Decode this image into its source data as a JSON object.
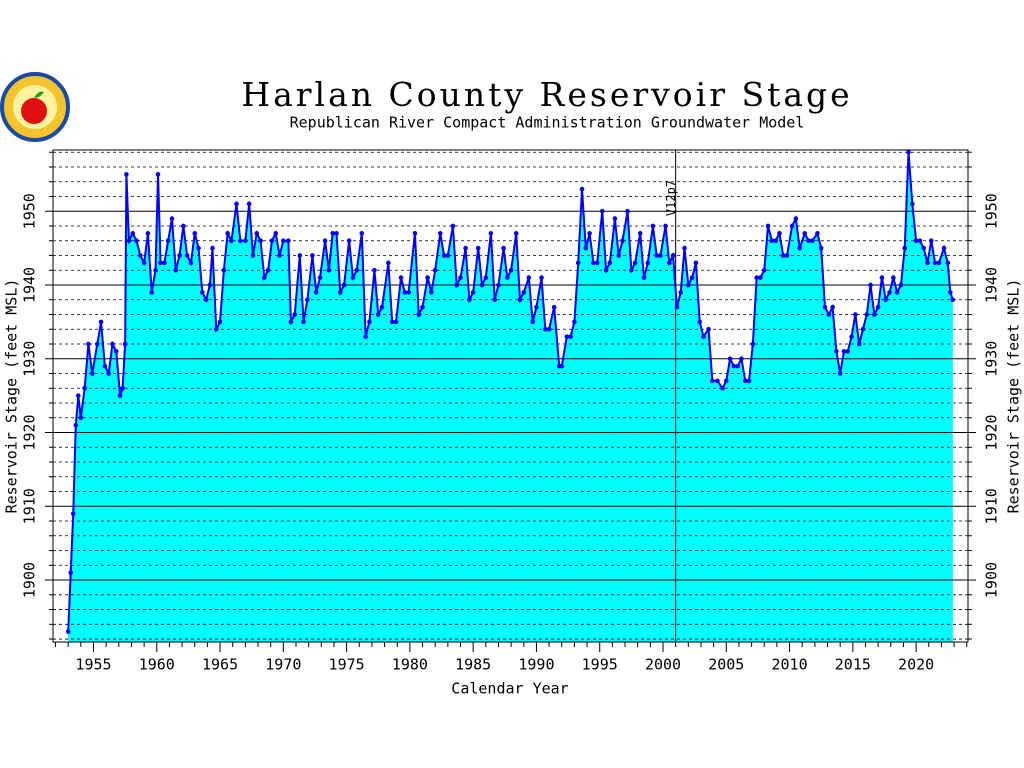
{
  "chart_data": {
    "type": "area",
    "title": "Harlan County Reservoir Stage",
    "subtitle": "Republican River Compact Administration Groundwater Model",
    "x_label": "Calendar Year",
    "y_label": "Reservoir Stage (feet MSL)",
    "xlim": [
      1951.8,
      2024.1
    ],
    "ylim": [
      1891.6,
      1958.3
    ],
    "xticks": [
      1955,
      1960,
      1965,
      1970,
      1975,
      1980,
      1985,
      1990,
      1995,
      2000,
      2005,
      2010,
      2015,
      2020
    ],
    "yticks": [
      1900,
      1910,
      1920,
      1930,
      1940,
      1950
    ],
    "x_minor_ticks": [
      1952,
      1953,
      1954,
      1956,
      1957,
      1958,
      1959,
      1961,
      1962,
      1963,
      1964,
      1966,
      1967,
      1968,
      1969,
      1971,
      1972,
      1973,
      1974,
      1976,
      1977,
      1978,
      1979,
      1981,
      1982,
      1983,
      1984,
      1986,
      1987,
      1988,
      1989,
      1991,
      1992,
      1993,
      1994,
      1996,
      1997,
      1998,
      1999,
      2001,
      2002,
      2003,
      2004,
      2006,
      2007,
      2008,
      2009,
      2011,
      2012,
      2013,
      2014,
      2016,
      2017,
      2018,
      2019,
      2021,
      2022,
      2023,
      2024
    ],
    "y_minor_grid": [
      1892,
      1894,
      1896,
      1898,
      1902,
      1904,
      1906,
      1908,
      1912,
      1914,
      1916,
      1918,
      1922,
      1924,
      1926,
      1928,
      1932,
      1934,
      1936,
      1938,
      1942,
      1944,
      1946,
      1948,
      1952,
      1954,
      1956,
      1958
    ],
    "grid": true,
    "fill_color": "#00ffff",
    "color": "#0000ff",
    "annotation": {
      "x": 2001,
      "label": "V12p7"
    },
    "x": [
      1953.0,
      1953.2,
      1953.4,
      1953.6,
      1953.8,
      1954.0,
      1954.3,
      1954.6,
      1954.9,
      1955.3,
      1955.6,
      1955.9,
      1956.2,
      1956.5,
      1956.8,
      1957.1,
      1957.3,
      1957.5,
      1957.6,
      1957.8,
      1958.1,
      1958.4,
      1958.7,
      1959.0,
      1959.3,
      1959.6,
      1959.9,
      1960.1,
      1960.3,
      1960.6,
      1960.9,
      1961.2,
      1961.5,
      1961.8,
      1962.1,
      1962.4,
      1962.7,
      1963.0,
      1963.3,
      1963.6,
      1963.9,
      1964.2,
      1964.4,
      1964.7,
      1965.0,
      1965.3,
      1965.6,
      1965.9,
      1966.3,
      1966.6,
      1967.0,
      1967.3,
      1967.6,
      1967.9,
      1968.2,
      1968.5,
      1968.8,
      1969.1,
      1969.4,
      1969.7,
      1970.0,
      1970.4,
      1970.6,
      1970.9,
      1971.3,
      1971.6,
      1971.9,
      1972.3,
      1972.6,
      1972.9,
      1973.3,
      1973.6,
      1973.9,
      1974.2,
      1974.5,
      1974.8,
      1975.2,
      1975.5,
      1975.8,
      1976.2,
      1976.5,
      1976.8,
      1977.2,
      1977.5,
      1977.8,
      1978.3,
      1978.6,
      1978.9,
      1979.3,
      1979.6,
      1979.9,
      1980.4,
      1980.7,
      1981.0,
      1981.4,
      1981.7,
      1982.0,
      1982.4,
      1982.7,
      1983.0,
      1983.4,
      1983.7,
      1984.0,
      1984.4,
      1984.7,
      1985.0,
      1985.4,
      1985.7,
      1986.0,
      1986.4,
      1986.7,
      1987.0,
      1987.4,
      1987.7,
      1988.0,
      1988.4,
      1988.7,
      1989.0,
      1989.4,
      1989.7,
      1990.0,
      1990.4,
      1990.7,
      1991.0,
      1991.4,
      1991.8,
      1992.0,
      1992.4,
      1992.7,
      1993.0,
      1993.3,
      1993.6,
      1993.9,
      1994.2,
      1994.5,
      1994.8,
      1995.2,
      1995.5,
      1995.8,
      1996.2,
      1996.5,
      1996.8,
      1997.2,
      1997.5,
      1997.8,
      1998.2,
      1998.5,
      1998.8,
      1999.2,
      1999.5,
      1999.8,
      2000.2,
      2000.5,
      2000.8,
      2001.1,
      2001.4,
      2001.7,
      2002.0,
      2002.3,
      2002.6,
      2002.9,
      2003.2,
      2003.6,
      2003.9,
      2004.3,
      2004.7,
      2005.0,
      2005.3,
      2005.6,
      2005.9,
      2006.2,
      2006.5,
      2006.8,
      2007.1,
      2007.4,
      2007.7,
      2008.0,
      2008.3,
      2008.6,
      2008.9,
      2009.2,
      2009.5,
      2009.8,
      2010.2,
      2010.5,
      2010.8,
      2011.2,
      2011.5,
      2011.8,
      2012.2,
      2012.5,
      2012.8,
      2013.1,
      2013.4,
      2013.7,
      2014.0,
      2014.3,
      2014.6,
      2014.9,
      2015.2,
      2015.5,
      2015.8,
      2016.1,
      2016.4,
      2016.7,
      2017.0,
      2017.3,
      2017.6,
      2017.9,
      2018.2,
      2018.5,
      2018.8,
      2019.1,
      2019.4,
      2019.7,
      2020.0,
      2020.3,
      2020.6,
      2020.9,
      2021.2,
      2021.5,
      2021.8,
      2022.2,
      2022.5,
      2022.7,
      2022.9
    ],
    "values": [
      1893,
      1901,
      1909,
      1921,
      1925,
      1922,
      1926,
      1932,
      1928,
      1932,
      1935,
      1929,
      1928,
      1932,
      1931,
      1925,
      1926,
      1932,
      1955,
      1946,
      1947,
      1946,
      1944,
      1943,
      1947,
      1939,
      1942,
      1955,
      1943,
      1943,
      1946,
      1949,
      1942,
      1944,
      1948,
      1944,
      1943,
      1947,
      1945,
      1939,
      1938,
      1940,
      1945,
      1934,
      1935,
      1942,
      1947,
      1946,
      1951,
      1946,
      1946,
      1951,
      1944,
      1947,
      1946,
      1941,
      1942,
      1946,
      1947,
      1944,
      1946,
      1946,
      1935,
      1936,
      1944,
      1935,
      1938,
      1944,
      1939,
      1941,
      1946,
      1942,
      1947,
      1947,
      1939,
      1940,
      1946,
      1941,
      1942,
      1947,
      1933,
      1935,
      1942,
      1936,
      1937,
      1943,
      1935,
      1935,
      1941,
      1939,
      1939,
      1947,
      1936,
      1937,
      1941,
      1939,
      1942,
      1947,
      1944,
      1944,
      1948,
      1940,
      1941,
      1945,
      1938,
      1939,
      1945,
      1940,
      1941,
      1947,
      1938,
      1940,
      1945,
      1941,
      1942,
      1947,
      1938,
      1939,
      1941,
      1935,
      1937,
      1941,
      1934,
      1934,
      1937,
      1929,
      1929,
      1933,
      1933,
      1935,
      1943,
      1953,
      1945,
      1947,
      1943,
      1943,
      1950,
      1942,
      1943,
      1949,
      1944,
      1946,
      1950,
      1942,
      1943,
      1947,
      1941,
      1943,
      1948,
      1944,
      1944,
      1948,
      1943,
      1944,
      1937,
      1939,
      1945,
      1940,
      1941,
      1943,
      1935,
      1933,
      1934,
      1927,
      1927,
      1926,
      1927,
      1930,
      1929,
      1929,
      1930,
      1927,
      1927,
      1932,
      1941,
      1941,
      1942,
      1948,
      1946,
      1946,
      1947,
      1944,
      1944,
      1948,
      1949,
      1945,
      1947,
      1946,
      1946,
      1947,
      1945,
      1937,
      1936,
      1937,
      1931,
      1928,
      1931,
      1931,
      1933,
      1936,
      1932,
      1934,
      1936,
      1940,
      1936,
      1937,
      1941,
      1938,
      1939,
      1941,
      1939,
      1940,
      1945,
      1958,
      1951,
      1946,
      1946,
      1945,
      1943,
      1946,
      1943,
      1943,
      1945,
      1943,
      1939,
      1938
    ]
  }
}
